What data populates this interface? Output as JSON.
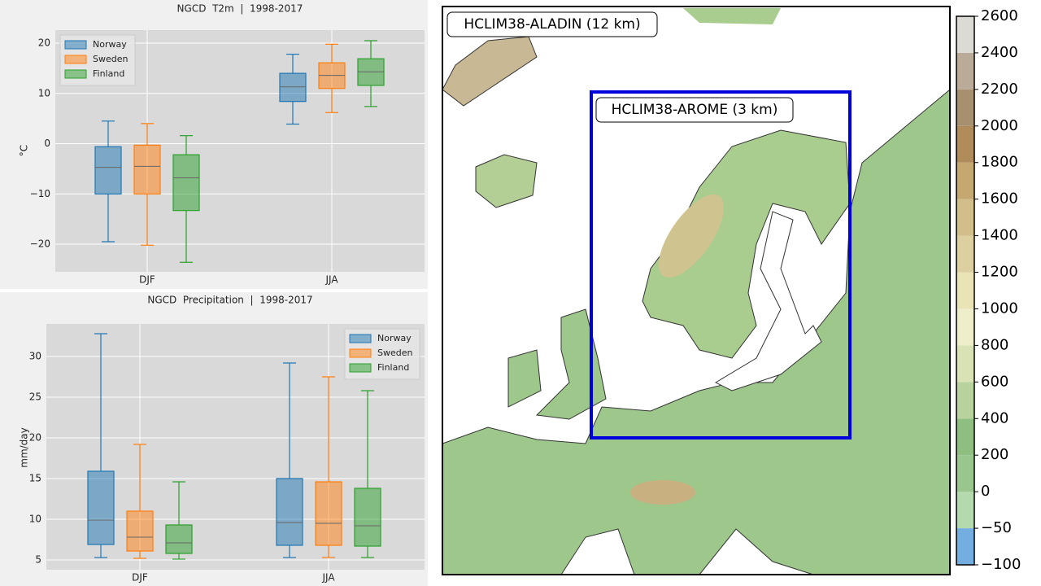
{
  "chart_data": [
    {
      "type": "box",
      "title": "NGCD  T2m  |  1998-2017",
      "ylabel": "°C",
      "categories": [
        "DJF",
        "JJA"
      ],
      "series": [
        {
          "name": "Norway",
          "color": "#1f77b4",
          "values": [
            {
              "low": -19.5,
              "q1": -10,
              "median": -4.7,
              "q3": -0.6,
              "high": 4.5
            },
            {
              "low": 3.9,
              "q1": 8.4,
              "median": 11.3,
              "q3": 14.0,
              "high": 17.8
            }
          ]
        },
        {
          "name": "Sweden",
          "color": "#ff7f0e",
          "values": [
            {
              "low": -20.2,
              "q1": -10,
              "median": -4.5,
              "q3": -0.3,
              "high": 4.0
            },
            {
              "low": 6.2,
              "q1": 11.0,
              "median": 13.6,
              "q3": 16.1,
              "high": 19.8
            }
          ]
        },
        {
          "name": "Finland",
          "color": "#2ca02c",
          "values": [
            {
              "low": -23.6,
              "q1": -13.3,
              "median": -6.8,
              "q3": -2.2,
              "high": 1.6
            },
            {
              "low": 7.4,
              "q1": 11.6,
              "median": 14.3,
              "q3": 16.9,
              "high": 20.5
            }
          ]
        }
      ],
      "ylim": [
        -25.5,
        22.6
      ],
      "yticks": [
        {
          "value": -20,
          "label": "−20"
        },
        {
          "value": -10,
          "label": "−10"
        },
        0,
        10,
        20
      ],
      "grid": true,
      "legend": "upper-left"
    },
    {
      "type": "box",
      "title": "NGCD  Precipitation  |  1998-2017",
      "ylabel": "mm/day",
      "categories": [
        "DJF",
        "JJA"
      ],
      "series": [
        {
          "name": "Norway",
          "color": "#1f77b4",
          "values": [
            {
              "low": 5.3,
              "q1": 6.9,
              "median": 9.9,
              "q3": 15.9,
              "high": 32.8
            },
            {
              "low": 5.3,
              "q1": 6.8,
              "median": 9.6,
              "q3": 15.0,
              "high": 29.2
            }
          ]
        },
        {
          "name": "Sweden",
          "color": "#ff7f0e",
          "values": [
            {
              "low": 5.2,
              "q1": 6.1,
              "median": 7.8,
              "q3": 11.0,
              "high": 19.2
            },
            {
              "low": 5.3,
              "q1": 6.8,
              "median": 9.5,
              "q3": 14.6,
              "high": 27.5
            }
          ]
        },
        {
          "name": "Finland",
          "color": "#2ca02c",
          "values": [
            {
              "low": 5.1,
              "q1": 5.8,
              "median": 7.1,
              "q3": 9.3,
              "high": 14.6
            },
            {
              "low": 5.3,
              "q1": 6.7,
              "median": 9.2,
              "q3": 13.8,
              "high": 25.8
            }
          ]
        }
      ],
      "ylim": [
        3.8,
        34
      ],
      "yticks": [
        5,
        10,
        15,
        20,
        25,
        30
      ],
      "grid": true,
      "legend": "upper-right"
    },
    {
      "type": "map",
      "annotations": [
        "HCLIM38-ALADIN (12 km)",
        "HCLIM38-AROME (3 km)"
      ],
      "colorbar_ticks": [
        {
          "value": -100,
          "label": "−100"
        },
        {
          "value": -50,
          "label": "−50"
        },
        0,
        200,
        400,
        600,
        800,
        1000,
        1200,
        1400,
        1600,
        1800,
        2000,
        2200,
        2400,
        2600
      ],
      "colorbar_colors": [
        "#74aee0",
        "#b5d9ae",
        "#98c68c",
        "#8fbf80",
        "#b8d29e",
        "#d9e2b4",
        "#eeeecb",
        "#eae3b5",
        "#ddd0a0",
        "#d1be8a",
        "#c4a870",
        "#b08c5a",
        "#a69070",
        "#b9ab98",
        "#dcdad5"
      ]
    }
  ]
}
